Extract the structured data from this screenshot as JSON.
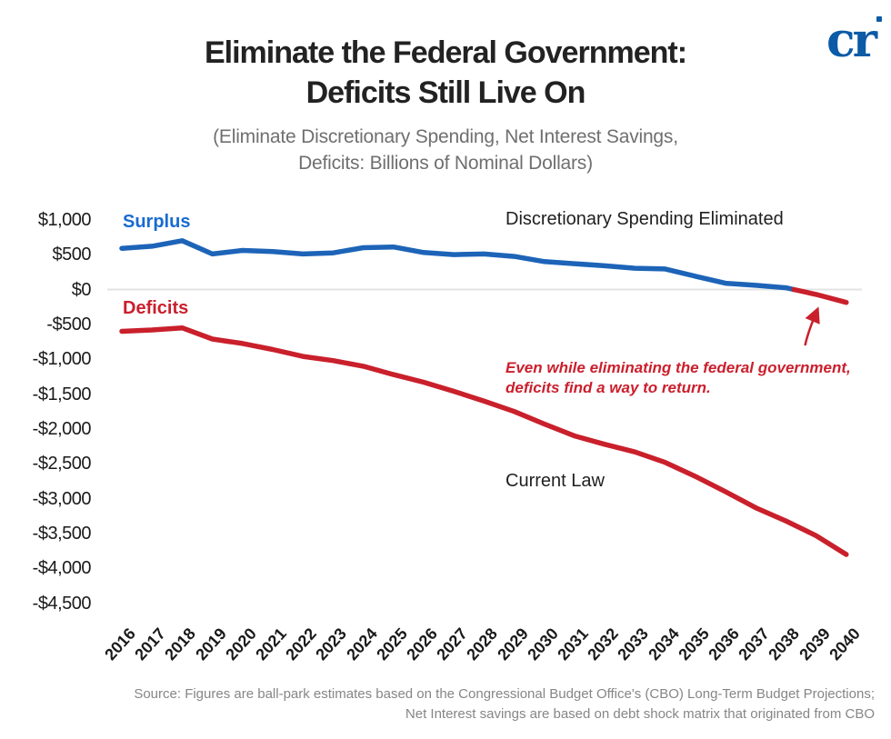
{
  "logo": {
    "text": "cr"
  },
  "title": {
    "line1": "Eliminate the Federal Government:",
    "line2": "Deficits Still Live On"
  },
  "subtitle": {
    "line1": "(Eliminate Discretionary Spending, Net Interest Savings,",
    "line2": "Deficits: Billions of Nominal Dollars)"
  },
  "labels": {
    "surplus": "Surplus",
    "deficits": "Deficits",
    "series_top": "Discretionary Spending Eliminated",
    "series_bottom": "Current Law"
  },
  "annotation": {
    "line1": "Even while eliminating the federal government,",
    "line2": "deficits find a way to return."
  },
  "source": {
    "line1": "Source: Figures are ball-park estimates based on the Congressional Budget Office's (CBO) Long-Term Budget Projections;",
    "line2": "Net Interest savings are based on debt shock matrix that originated from CBO"
  },
  "colors": {
    "line_blue": "#1d64b8",
    "label_blue": "#176bd2",
    "line_red": "#c9202b",
    "logo_blue": "#0b5ba6",
    "grid_gray": "#e3e3e3",
    "text_dark": "#1f1f1f",
    "subtitle_gray": "#6f6f6f",
    "source_gray": "#868686"
  },
  "chart_data": {
    "type": "line",
    "title": "Eliminate the Federal Government: Deficits Still Live On",
    "subtitle": "(Eliminate Discretionary Spending, Net Interest Savings, Deficits: Billions of Nominal Dollars)",
    "x": [
      2016,
      2017,
      2018,
      2019,
      2020,
      2021,
      2022,
      2023,
      2024,
      2025,
      2026,
      2027,
      2028,
      2029,
      2030,
      2031,
      2032,
      2033,
      2034,
      2035,
      2036,
      2037,
      2038,
      2039,
      2040
    ],
    "series": [
      {
        "name": "Discretionary Spending Eliminated",
        "color_positive": "#1d64b8",
        "color_negative": "#c9202b",
        "values": [
          590,
          620,
          700,
          510,
          560,
          545,
          510,
          525,
          600,
          610,
          530,
          500,
          510,
          475,
          400,
          370,
          340,
          305,
          295,
          190,
          90,
          60,
          25,
          -70,
          -185
        ]
      },
      {
        "name": "Current Law",
        "color": "#c9202b",
        "values": [
          -600,
          -580,
          -550,
          -710,
          -775,
          -860,
          -960,
          -1020,
          -1100,
          -1220,
          -1330,
          -1460,
          -1600,
          -1750,
          -1930,
          -2100,
          -2220,
          -2330,
          -2480,
          -2680,
          -2900,
          -3130,
          -3320,
          -3530,
          -3800
        ]
      }
    ],
    "y_ticks": [
      {
        "value": 1000,
        "label": "$1,000"
      },
      {
        "value": 500,
        "label": "$500"
      },
      {
        "value": 0,
        "label": "$0"
      },
      {
        "value": -500,
        "label": "-$500"
      },
      {
        "value": -1000,
        "label": "-$1,000"
      },
      {
        "value": -1500,
        "label": "-$1,500"
      },
      {
        "value": -2000,
        "label": "-$2,000"
      },
      {
        "value": -2500,
        "label": "-$2,500"
      },
      {
        "value": -3000,
        "label": "-$3,000"
      },
      {
        "value": -3500,
        "label": "-$3,500"
      },
      {
        "value": -4000,
        "label": "-$4,000"
      },
      {
        "value": -4500,
        "label": "-$4,500"
      }
    ],
    "ylim": [
      -4500,
      1000
    ],
    "grid": "zero-line-only",
    "legend_position": "in-chart-text-labels"
  }
}
